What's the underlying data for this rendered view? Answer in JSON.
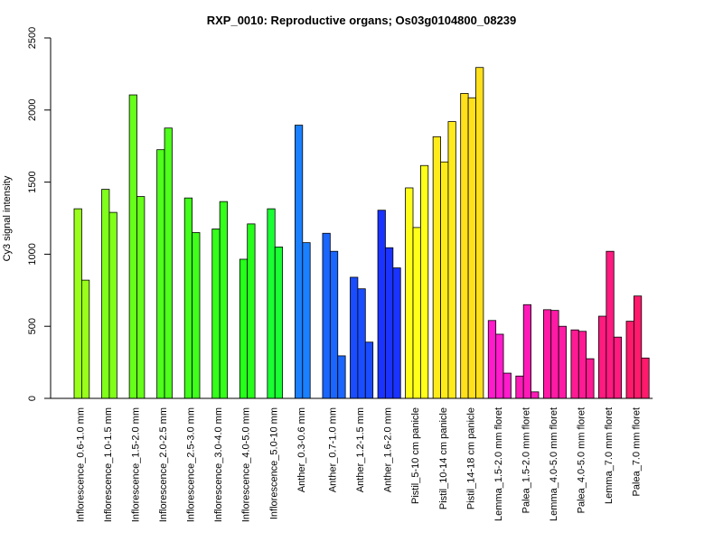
{
  "chart_data": {
    "type": "bar",
    "title": "RXP_0010: Reproductive organs; Os03g0104800_08239",
    "xlabel": "",
    "ylabel": "Cy3 signal intensity",
    "ylim": [
      0,
      2500
    ],
    "yticks": [
      "0",
      "500",
      "1000",
      "1500",
      "2000",
      "2500"
    ],
    "grid": false,
    "groups": [
      {
        "label": "Inflorescence_0.6-1.0 mm",
        "color": "#99ff1a",
        "values": [
          1315,
          820
        ]
      },
      {
        "label": "Inflorescence_1.0-1.5 mm",
        "color": "#80ff1a",
        "values": [
          1450,
          1290
        ]
      },
      {
        "label": "Inflorescence_1.5-2.0 mm",
        "color": "#66ff1a",
        "values": [
          2105,
          1400
        ]
      },
      {
        "label": "Inflorescence_2.0-2.5 mm",
        "color": "#4dff1a",
        "values": [
          1725,
          1875
        ]
      },
      {
        "label": "Inflorescence_2.5-3.0 mm",
        "color": "#40ff1a",
        "values": [
          1390,
          1150
        ]
      },
      {
        "label": "Inflorescence_3.0-4.0 mm",
        "color": "#33ff1a",
        "values": [
          1175,
          1365
        ]
      },
      {
        "label": "Inflorescence_4.0-5.0 mm",
        "color": "#26ff1a",
        "values": [
          965,
          1210
        ]
      },
      {
        "label": "Inflorescence_5.0-10 mm",
        "color": "#1aff33",
        "values": [
          1315,
          1050
        ]
      },
      {
        "label": "Anther_0.3-0.6 mm",
        "color": "#1a80ff",
        "values": [
          1895,
          1080
        ]
      },
      {
        "label": "Anther_0.7-1.0 mm",
        "color": "#1a66ff",
        "values": [
          1145,
          1020,
          295
        ]
      },
      {
        "label": "Anther_1.2-1.5 mm",
        "color": "#1a4dff",
        "values": [
          840,
          760,
          390
        ]
      },
      {
        "label": "Anther_1.6-2.0 mm",
        "color": "#1a33ff",
        "values": [
          1305,
          1045,
          905
        ]
      },
      {
        "label": "Pistil_5-10 cm panicle",
        "color": "#ffff1a",
        "values": [
          1460,
          1185,
          1615
        ]
      },
      {
        "label": "Pistil_10-14 cm panicle",
        "color": "#ffeb1a",
        "values": [
          1815,
          1640,
          1920
        ]
      },
      {
        "label": "Pistil_14-18 cm panicle",
        "color": "#ffe01a",
        "values": [
          2115,
          2085,
          2295
        ]
      },
      {
        "label": "Lemma_1.5-2.0 mm floret",
        "color": "#ff1acc",
        "values": [
          540,
          445,
          175
        ]
      },
      {
        "label": "Palea_1.5-2.0 mm floret",
        "color": "#ff1ab8",
        "values": [
          155,
          650,
          45
        ]
      },
      {
        "label": "Lemma_4.0-5.0 mm floret",
        "color": "#ff1aa6",
        "values": [
          615,
          610,
          500
        ]
      },
      {
        "label": "Palea_4.0-5.0 mm floret",
        "color": "#ff1a94",
        "values": [
          475,
          465,
          275
        ]
      },
      {
        "label": "Lemma_7.0 mm floret",
        "color": "#ff1a80",
        "values": [
          570,
          1020,
          425
        ]
      },
      {
        "label": "Palea_7.0 mm floret",
        "color": "#ff1a6b",
        "values": [
          535,
          710,
          280
        ]
      }
    ]
  }
}
